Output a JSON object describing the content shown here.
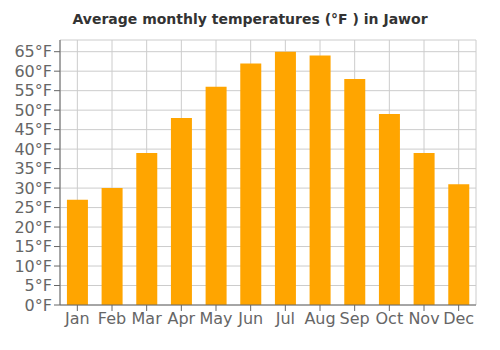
{
  "chart_data": {
    "type": "bar",
    "title": "Average monthly temperatures (°F ) in Jawor",
    "categories": [
      "Jan",
      "Feb",
      "Mar",
      "Apr",
      "May",
      "Jun",
      "Jul",
      "Aug",
      "Sep",
      "Oct",
      "Nov",
      "Dec"
    ],
    "values": [
      27,
      30,
      39,
      48,
      56,
      62,
      65,
      64,
      58,
      49,
      39,
      31
    ],
    "color": "#FFA500",
    "ylim": [
      0,
      68
    ],
    "yticks": [
      {
        "value": 0,
        "label": "0°F"
      },
      {
        "value": 5,
        "label": "5°F"
      },
      {
        "value": 10,
        "label": "10°F"
      },
      {
        "value": 15,
        "label": "15°F"
      },
      {
        "value": 20,
        "label": "20°F"
      },
      {
        "value": 25,
        "label": "25°F"
      },
      {
        "value": 30,
        "label": "30°F"
      },
      {
        "value": 35,
        "label": "35°F"
      },
      {
        "value": 40,
        "label": "40°F"
      },
      {
        "value": 45,
        "label": "45°F"
      },
      {
        "value": 50,
        "label": "50°F"
      },
      {
        "value": 55,
        "label": "55°F"
      },
      {
        "value": 60,
        "label": "60°F"
      },
      {
        "value": 65,
        "label": "65°F"
      }
    ],
    "grid": true
  }
}
